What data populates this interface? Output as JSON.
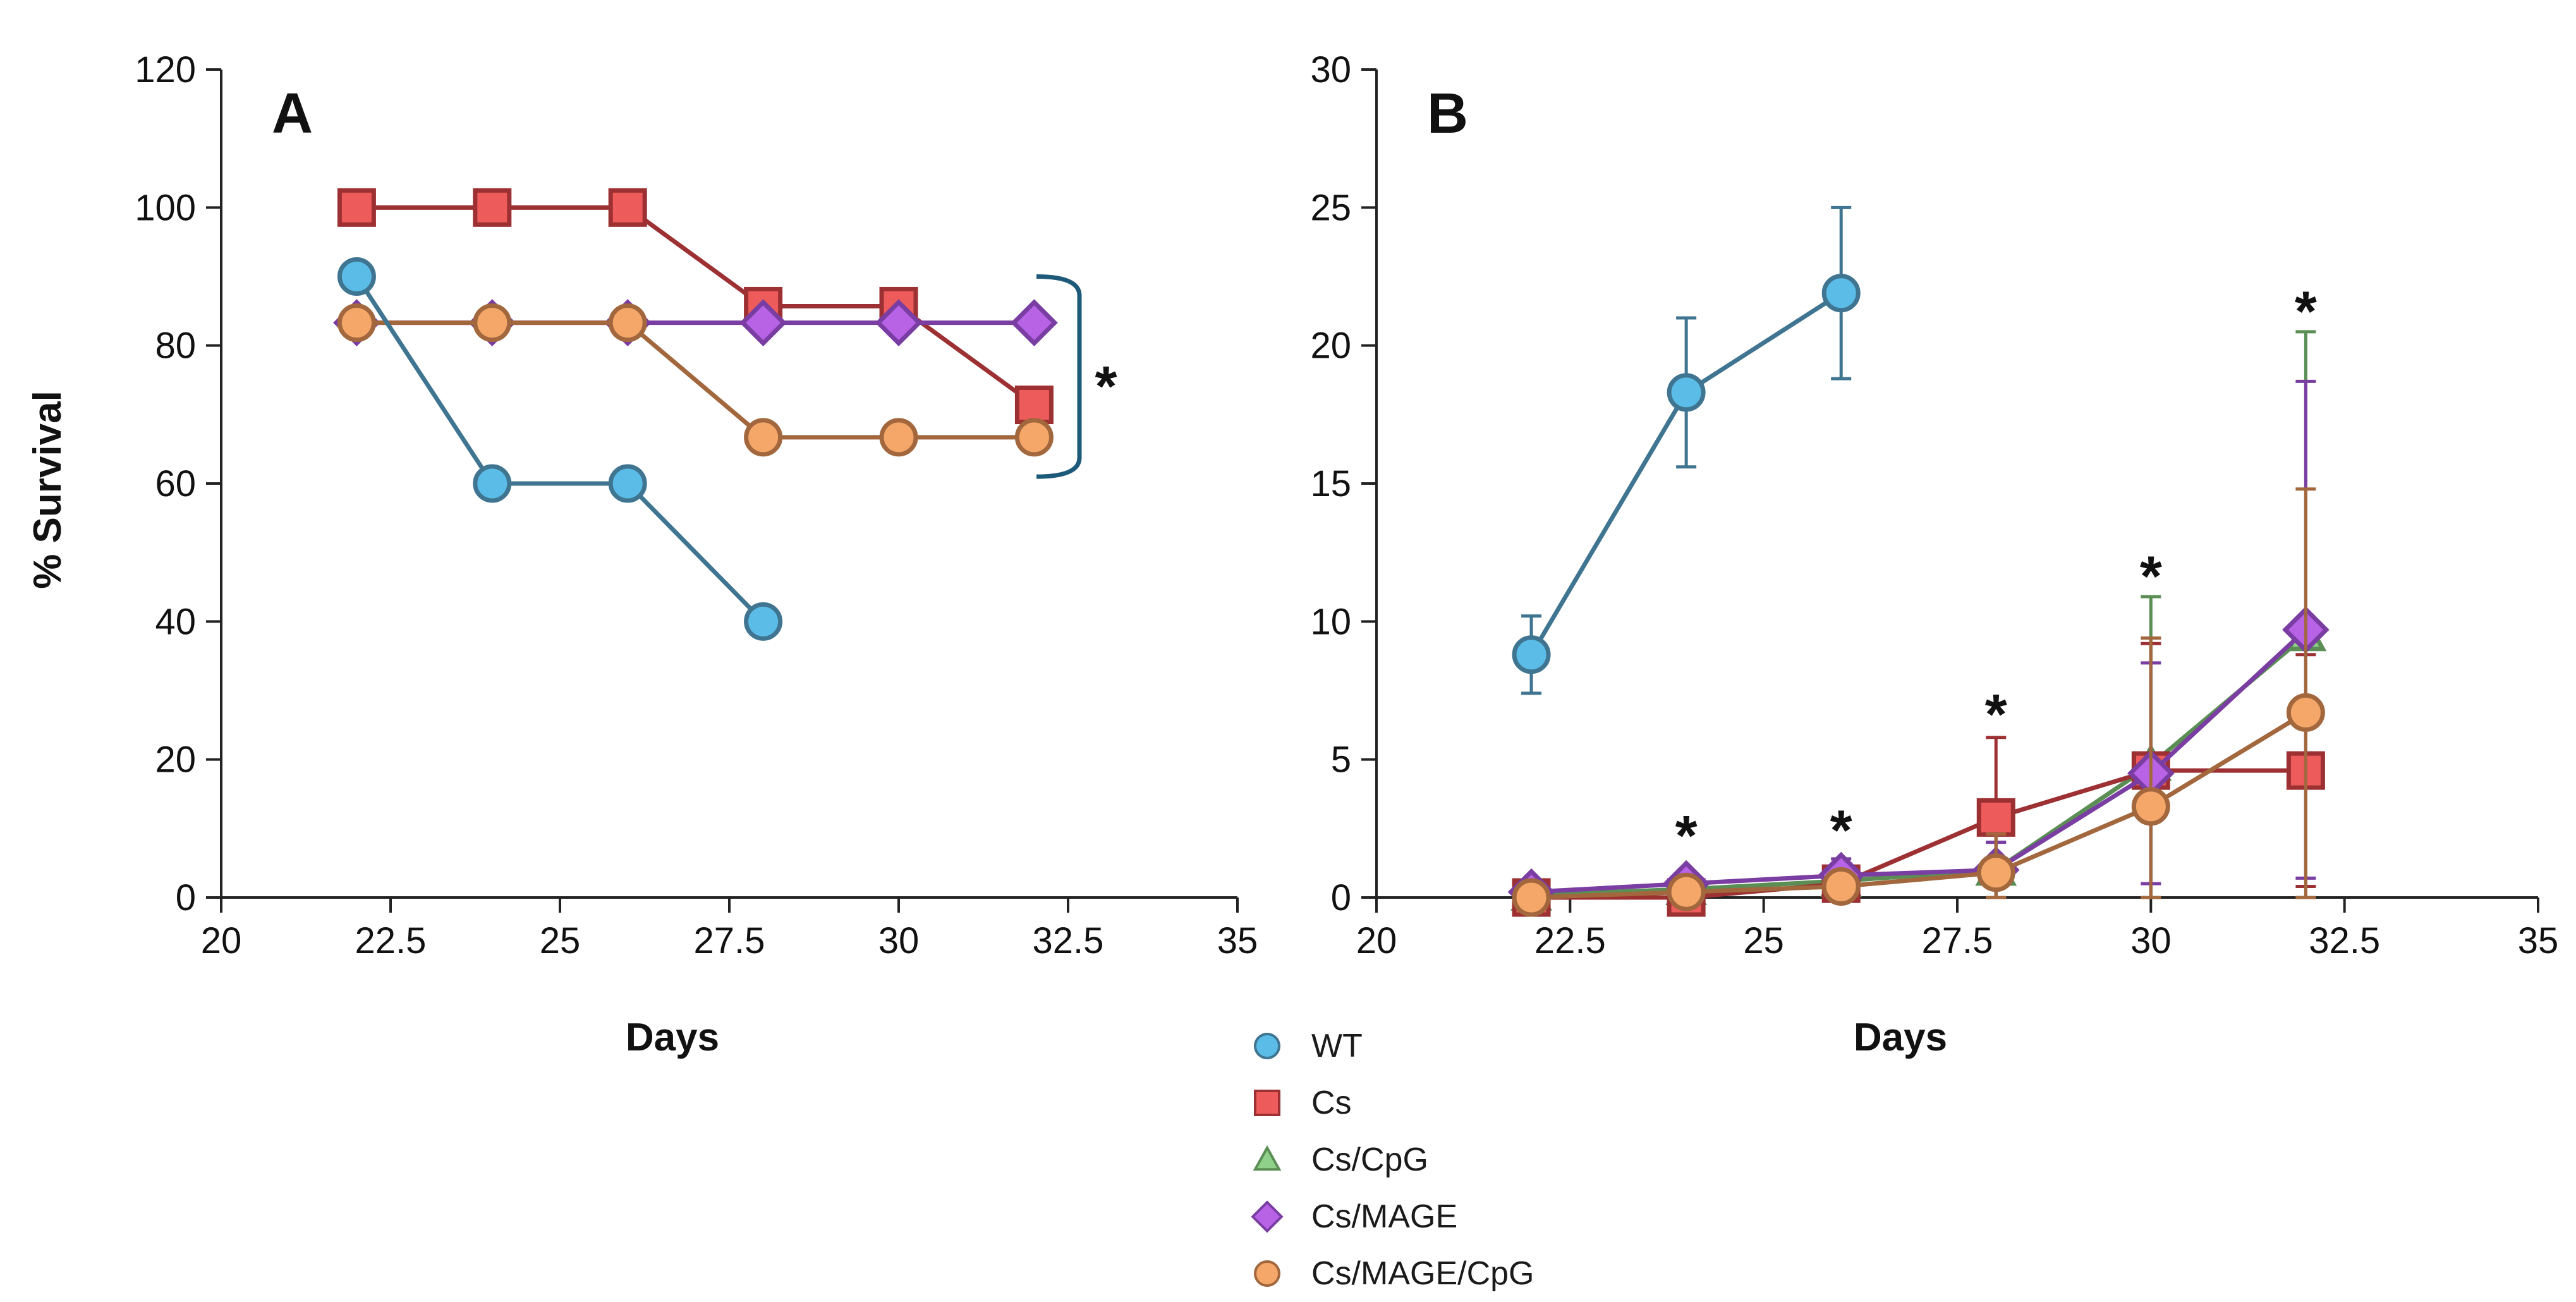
{
  "series_styles": {
    "WT": {
      "marker": "circle",
      "fill": "#5bbce8",
      "stroke": "#3f7591"
    },
    "Cs": {
      "marker": "square",
      "fill": "#ee5b5b",
      "stroke": "#9c3032"
    },
    "Cs/CpG": {
      "marker": "triangle",
      "fill": "#8fd08a",
      "stroke": "#5a8e55"
    },
    "Cs/MAGE": {
      "marker": "diamond",
      "fill": "#b862e6",
      "stroke": "#7a3da2"
    },
    "Cs/MAGE/CpG": {
      "marker": "circle",
      "fill": "#f5a769",
      "stroke": "#a2673d"
    }
  },
  "legend": {
    "items": [
      {
        "label": "WT",
        "series": "WT"
      },
      {
        "label": "Cs",
        "series": "Cs"
      },
      {
        "label": "Cs/CpG",
        "series": "Cs/CpG"
      },
      {
        "label": "Cs/MAGE",
        "series": "Cs/MAGE"
      },
      {
        "label": "Cs/MAGE/CpG",
        "series": "Cs/MAGE/CpG"
      }
    ]
  },
  "chart_data": [
    {
      "type": "line",
      "panel": "A",
      "title": "",
      "xlabel": "Days",
      "ylabel": "% Survival",
      "xlim": [
        20,
        35
      ],
      "ylim": [
        0,
        120
      ],
      "xticks": [
        "20",
        "22.5",
        "25",
        "27.5",
        "30",
        "32.5",
        "35"
      ],
      "yticks": [
        "0",
        "20",
        "40",
        "60",
        "80",
        "100",
        "120"
      ],
      "series": [
        {
          "name": "Cs",
          "x": [
            22,
            24,
            26,
            28,
            30,
            32
          ],
          "y": [
            100,
            100,
            100,
            85.7,
            85.7,
            71.4
          ]
        },
        {
          "name": "Cs/MAGE",
          "x": [
            22,
            24,
            26,
            28,
            30,
            32
          ],
          "y": [
            83.3,
            83.3,
            83.3,
            83.3,
            83.3,
            83.3
          ]
        },
        {
          "name": "Cs/MAGE/CpG",
          "x": [
            22,
            24,
            26,
            28,
            30,
            32
          ],
          "y": [
            83.3,
            83.3,
            83.3,
            66.7,
            66.7,
            66.7
          ]
        },
        {
          "name": "WT",
          "x": [
            22,
            24,
            26,
            28
          ],
          "y": [
            90,
            60,
            60,
            40
          ]
        }
      ],
      "annotations": [
        {
          "text": "*",
          "type": "significance-bracket",
          "y_from": 61,
          "y_to": 90
        }
      ]
    },
    {
      "type": "line",
      "panel": "B",
      "title": "",
      "xlabel": "Days",
      "ylabel": "",
      "xlim": [
        20,
        35
      ],
      "ylim": [
        0,
        30
      ],
      "xticks": [
        "20",
        "22.5",
        "25",
        "27.5",
        "30",
        "32.5",
        "35"
      ],
      "yticks": [
        "0",
        "5",
        "10",
        "15",
        "20",
        "25",
        "30"
      ],
      "series": [
        {
          "name": "WT",
          "x": [
            22,
            24,
            26
          ],
          "y": [
            8.8,
            18.3,
            21.9
          ],
          "err": [
            1.4,
            2.7,
            3.1
          ]
        },
        {
          "name": "Cs",
          "x": [
            22,
            24,
            26,
            28,
            30,
            32
          ],
          "y": [
            0,
            0,
            0.5,
            2.9,
            4.6,
            4.6
          ],
          "err": [
            0,
            0,
            0.3,
            2.9,
            4.6,
            4.2
          ]
        },
        {
          "name": "Cs/CpG",
          "x": [
            22,
            24,
            26,
            28,
            30,
            32
          ],
          "y": [
            0.1,
            0.3,
            0.6,
            1.0,
            4.8,
            9.5
          ],
          "err": [
            0.1,
            0.3,
            0.4,
            1.0,
            6.1,
            11.0
          ]
        },
        {
          "name": "Cs/MAGE",
          "x": [
            22,
            24,
            26,
            28,
            30,
            32
          ],
          "y": [
            0.2,
            0.5,
            0.8,
            1.0,
            4.5,
            9.7
          ],
          "err": [
            0.1,
            0.3,
            0.6,
            1.0,
            4.0,
            9.0
          ]
        },
        {
          "name": "Cs/MAGE/CpG",
          "x": [
            22,
            24,
            26,
            28,
            30,
            32
          ],
          "y": [
            0,
            0.2,
            0.4,
            0.9,
            3.3,
            6.7
          ],
          "err": [
            0,
            0.1,
            0.3,
            1.4,
            6.1,
            8.1
          ]
        }
      ],
      "annotations": [
        {
          "text": "*",
          "x": 24,
          "y": 2.4
        },
        {
          "text": "*",
          "x": 26,
          "y": 2.6
        },
        {
          "text": "*",
          "x": 28,
          "y": 6.8
        },
        {
          "text": "*",
          "x": 30,
          "y": 11.8
        },
        {
          "text": "*",
          "x": 32,
          "y": 21.4
        }
      ]
    }
  ]
}
